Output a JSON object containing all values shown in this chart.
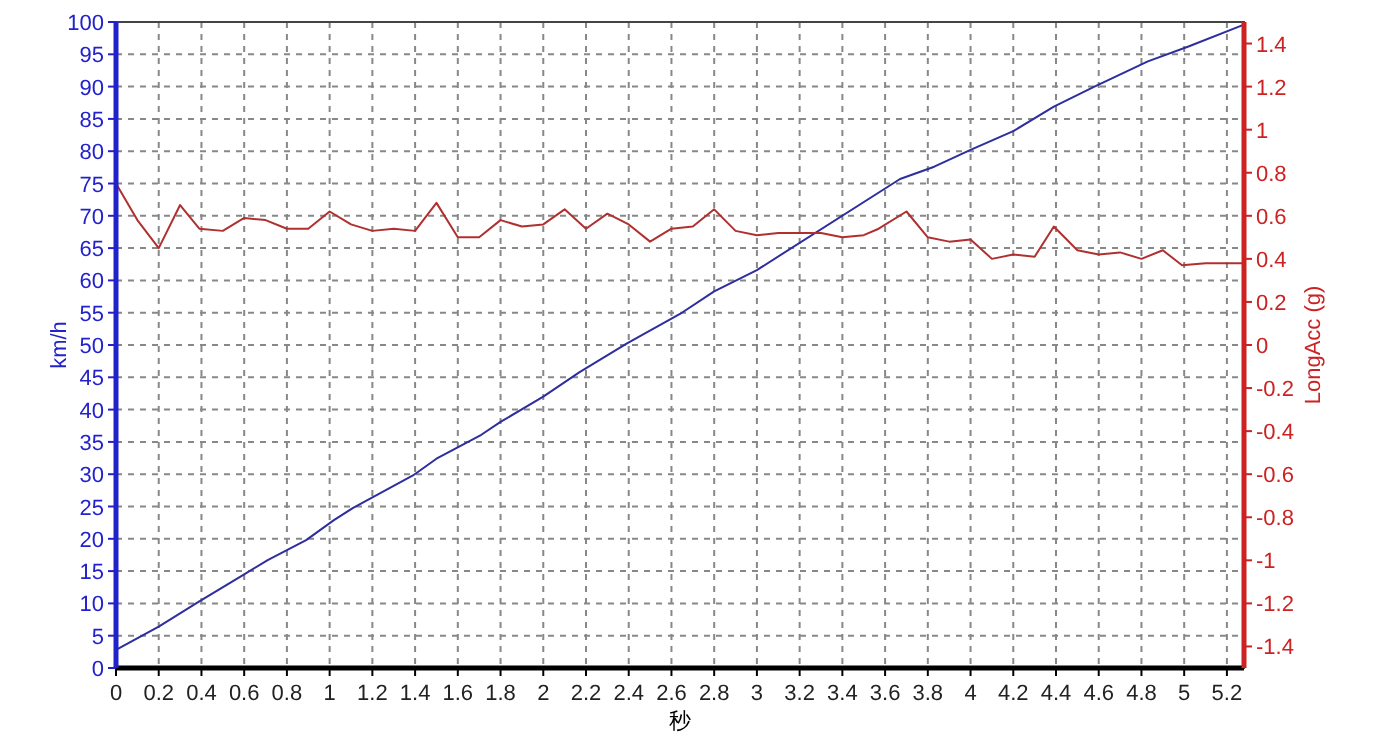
{
  "chart_data": {
    "type": "line",
    "xlabel": "秒",
    "ylabel": "km/h",
    "y2label": "LongAcc (g)",
    "xlim": [
      0,
      5.28
    ],
    "ylim": [
      0,
      100
    ],
    "y2lim": [
      -1.5,
      1.5
    ],
    "xticks": [
      0,
      0.2,
      0.4,
      0.6,
      0.8,
      1,
      1.2,
      1.4,
      1.6,
      1.8,
      2,
      2.2,
      2.4,
      2.6,
      2.8,
      3,
      3.2,
      3.4,
      3.6,
      3.8,
      4,
      4.2,
      4.4,
      4.6,
      4.8,
      5,
      5.2
    ],
    "yticks": [
      0,
      5,
      10,
      15,
      20,
      25,
      30,
      35,
      40,
      45,
      50,
      55,
      60,
      65,
      70,
      75,
      80,
      85,
      90,
      95,
      100
    ],
    "y2ticks": [
      -1.4,
      -1.2,
      -1,
      -0.8,
      -0.6,
      -0.4,
      -0.2,
      0,
      0.2,
      0.4,
      0.6,
      0.8,
      1,
      1.2,
      1.4
    ],
    "grid": true,
    "series": [
      {
        "color": "#2e2e9e",
        "x": [
          0,
          0.2,
          0.39,
          0.6,
          0.71,
          0.89,
          1.02,
          1.11,
          1.39,
          1.5,
          1.71,
          1.8,
          2,
          2.17,
          2.39,
          2.64,
          2.8,
          3,
          3.67,
          3.83,
          4,
          4.2,
          4.39,
          4.58,
          4.83,
          5.02,
          5.28
        ],
        "values": [
          2.8,
          6.4,
          10.3,
          14.5,
          16.7,
          19.8,
          22.9,
          24.8,
          29.8,
          32.4,
          36.1,
          38.1,
          42,
          45.8,
          50.2,
          54.8,
          58.3,
          61.6,
          75.7,
          77.6,
          80.2,
          83.1,
          86.9,
          90,
          93.9,
          96.2,
          99.6
        ]
      },
      {
        "color": "#b03030",
        "axis": "y2",
        "x": [
          0,
          0.1,
          0.2,
          0.3,
          0.39,
          0.5,
          0.6,
          0.7,
          0.8,
          0.9,
          1,
          1.1,
          1.2,
          1.3,
          1.4,
          1.5,
          1.6,
          1.7,
          1.8,
          1.9,
          2,
          2.1,
          2.2,
          2.3,
          2.4,
          2.5,
          2.6,
          2.7,
          2.8,
          2.9,
          3,
          3.1,
          3.3,
          3.4,
          3.5,
          3.57,
          3.7,
          3.8,
          3.9,
          4,
          4.1,
          4.2,
          4.3,
          4.39,
          4.5,
          4.6,
          4.7,
          4.8,
          4.9,
          4.99,
          5.1,
          5.28
        ],
        "values": [
          0.75,
          0.58,
          0.45,
          0.65,
          0.54,
          0.53,
          0.59,
          0.58,
          0.54,
          0.54,
          0.62,
          0.56,
          0.53,
          0.54,
          0.53,
          0.66,
          0.5,
          0.5,
          0.58,
          0.55,
          0.56,
          0.63,
          0.54,
          0.61,
          0.56,
          0.48,
          0.54,
          0.55,
          0.63,
          0.53,
          0.51,
          0.52,
          0.52,
          0.5,
          0.51,
          0.54,
          0.62,
          0.5,
          0.48,
          0.49,
          0.4,
          0.42,
          0.41,
          0.55,
          0.44,
          0.42,
          0.43,
          0.4,
          0.44,
          0.37,
          0.38,
          0.38
        ]
      }
    ]
  }
}
